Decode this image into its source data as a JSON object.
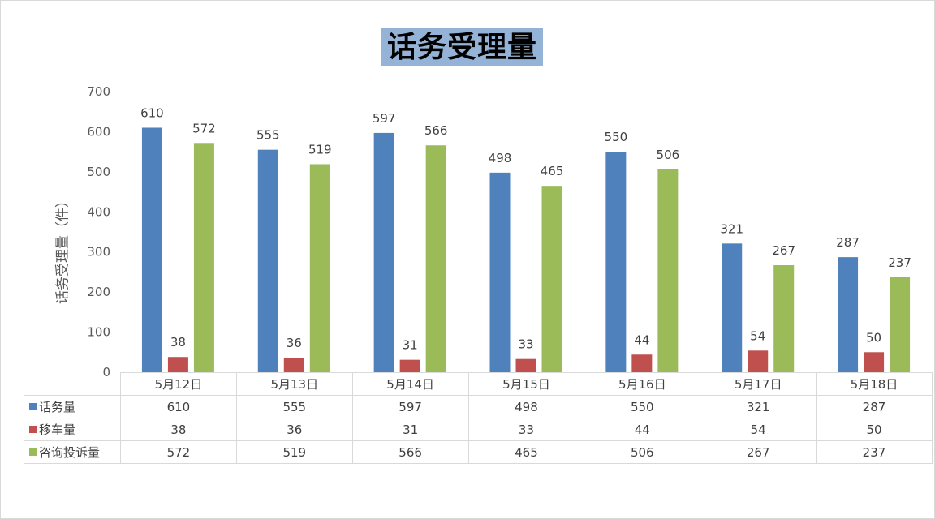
{
  "chart_data": {
    "type": "bar",
    "title": "话务受理量",
    "ylabel": "话务受理量（件）",
    "xlabel": "",
    "ylim": [
      0,
      700
    ],
    "yticks": [
      0,
      100,
      200,
      300,
      400,
      500,
      600,
      700
    ],
    "categories": [
      "5月12日",
      "5月13日",
      "5月14日",
      "5月15日",
      "5月16日",
      "5月17日",
      "5月18日"
    ],
    "series": [
      {
        "name": "话务量",
        "color": "#4f81bd",
        "values": [
          610,
          555,
          597,
          498,
          550,
          321,
          287
        ]
      },
      {
        "name": "移车量",
        "color": "#c0504d",
        "values": [
          38,
          36,
          31,
          33,
          44,
          54,
          50
        ]
      },
      {
        "name": "咨询投诉量",
        "color": "#9bbb59",
        "values": [
          572,
          519,
          566,
          465,
          506,
          267,
          237
        ]
      }
    ],
    "legend": "data-table",
    "grid": false
  }
}
